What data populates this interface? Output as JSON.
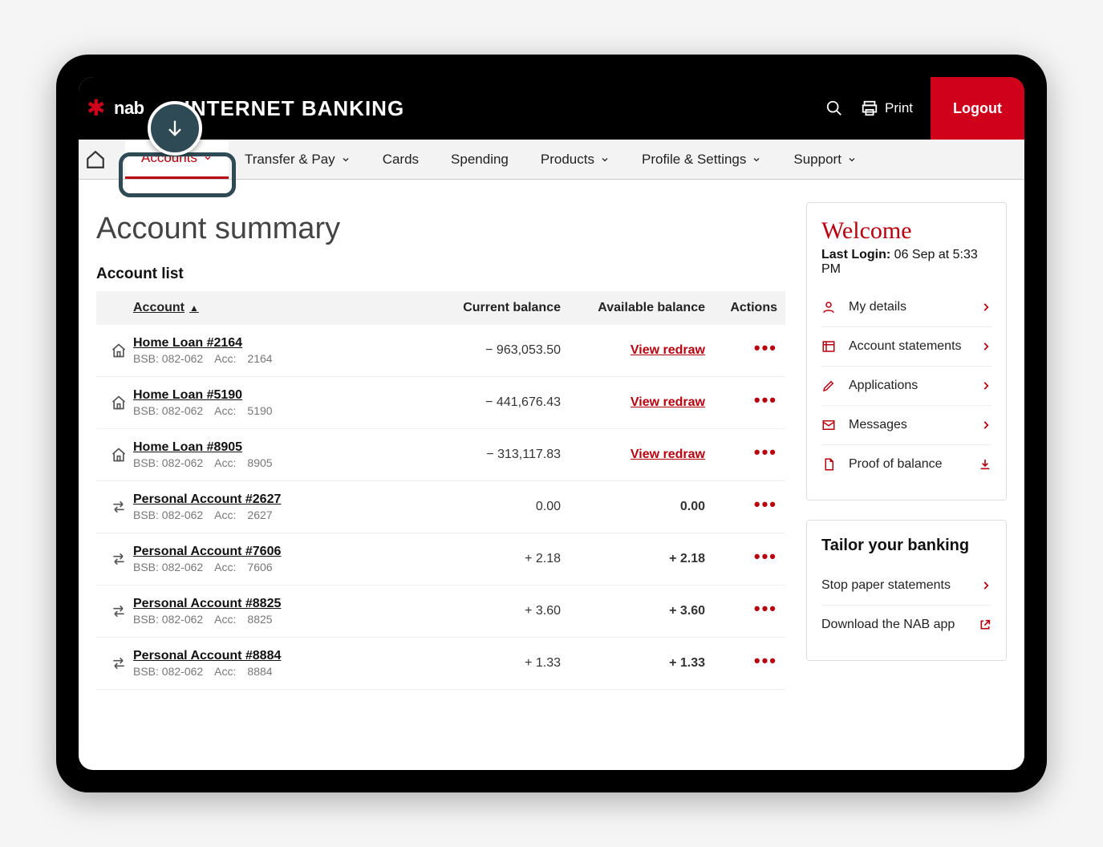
{
  "brand": {
    "name": "nab",
    "app_title": "INTERNET BANKING"
  },
  "top_actions": {
    "print_label": "Print",
    "logout_label": "Logout"
  },
  "nav": {
    "items": [
      {
        "label": "Accounts",
        "dropdown": true,
        "active": true
      },
      {
        "label": "Transfer & Pay",
        "dropdown": true,
        "active": false
      },
      {
        "label": "Cards",
        "dropdown": false,
        "active": false
      },
      {
        "label": "Spending",
        "dropdown": false,
        "active": false
      },
      {
        "label": "Products",
        "dropdown": true,
        "active": false
      },
      {
        "label": "Profile & Settings",
        "dropdown": true,
        "active": false
      },
      {
        "label": "Support",
        "dropdown": true,
        "active": false
      }
    ]
  },
  "page": {
    "title": "Account summary",
    "list_heading": "Account list",
    "columns": {
      "account": "Account",
      "current": "Current balance",
      "available": "Available balance",
      "actions": "Actions"
    }
  },
  "accounts": [
    {
      "icon": "home",
      "name": "Home Loan #2164",
      "bsb": "082-062",
      "accnum": "2164",
      "current": "− 963,053.50",
      "available_link": "View redraw",
      "available": ""
    },
    {
      "icon": "home",
      "name": "Home Loan #5190",
      "bsb": "082-062",
      "accnum": "5190",
      "current": "− 441,676.43",
      "available_link": "View redraw",
      "available": ""
    },
    {
      "icon": "home",
      "name": "Home Loan #8905",
      "bsb": "082-062",
      "accnum": "8905",
      "current": "− 313,117.83",
      "available_link": "View redraw",
      "available": ""
    },
    {
      "icon": "transfer",
      "name": "Personal Account #2627",
      "bsb": "082-062",
      "accnum": "2627",
      "current": "0.00",
      "available_link": "",
      "available": "0.00"
    },
    {
      "icon": "transfer",
      "name": "Personal Account #7606",
      "bsb": "082-062",
      "accnum": "7606",
      "current": "+ 2.18",
      "available_link": "",
      "available": "+ 2.18"
    },
    {
      "icon": "transfer",
      "name": "Personal Account #8825",
      "bsb": "082-062",
      "accnum": "8825",
      "current": "+ 3.60",
      "available_link": "",
      "available": "+ 3.60"
    },
    {
      "icon": "transfer",
      "name": "Personal Account #8884",
      "bsb": "082-062",
      "accnum": "8884",
      "current": "+ 1.33",
      "available_link": "",
      "available": "+ 1.33"
    }
  ],
  "bsb_label": "BSB:",
  "acc_label": "Acc:",
  "sidebar": {
    "welcome": "Welcome",
    "last_login_label": "Last Login:",
    "last_login_value": "06 Sep at 5:33 PM",
    "links": [
      {
        "icon": "user",
        "label": "My details",
        "action": "chevron"
      },
      {
        "icon": "statement",
        "label": "Account statements",
        "action": "chevron"
      },
      {
        "icon": "edit",
        "label": "Applications",
        "action": "chevron"
      },
      {
        "icon": "mail",
        "label": "Messages",
        "action": "chevron"
      },
      {
        "icon": "doc",
        "label": "Proof of balance",
        "action": "download"
      }
    ],
    "tailor_heading": "Tailor your banking",
    "tailor_links": [
      {
        "icon": "",
        "label": "Stop paper statements",
        "action": "chevron"
      },
      {
        "icon": "",
        "label": "Download the NAB app",
        "action": "external"
      }
    ]
  },
  "colors": {
    "brand_red": "#d0021b",
    "link_red": "#b8000f",
    "callout": "#2e4a54",
    "nav_bg": "#f3f3f3",
    "border": "#dddddd"
  }
}
